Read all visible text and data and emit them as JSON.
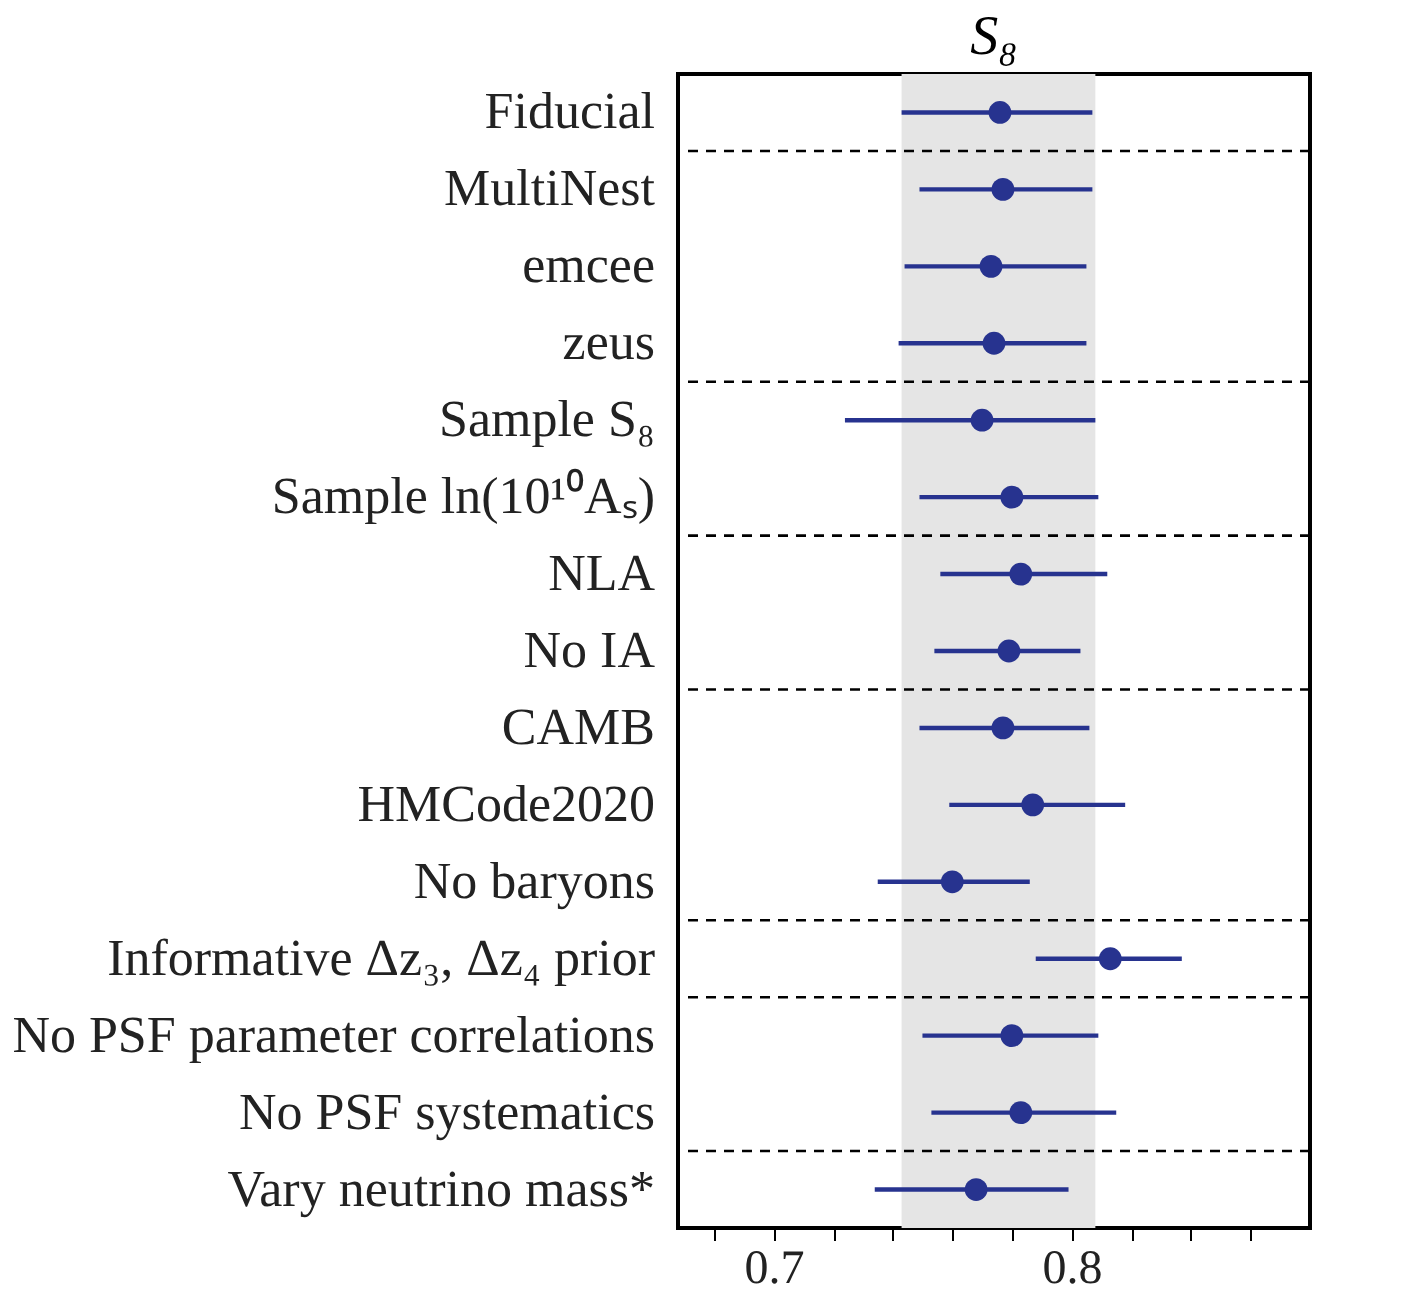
{
  "chart_data": {
    "type": "scatter",
    "orientation": "horizontal",
    "title": "S₈",
    "categories": [
      "Fiducial",
      "MultiNest",
      "emcee",
      "zeus",
      "Sample S₈",
      "Sample ln(10¹⁰Aₛ)",
      "NLA",
      "No IA",
      "CAMB",
      "HMCode2020",
      "No baryons",
      "Informative Δz₃, Δz₄ prior",
      "No PSF parameter correlations",
      "No PSF systematics",
      "Vary neutrino mass*"
    ],
    "series": [
      {
        "color": "#27338f",
        "values": [
          0.776,
          0.777,
          0.773,
          0.774,
          0.77,
          0.78,
          0.783,
          0.779,
          0.777,
          0.787,
          0.76,
          0.813,
          0.78,
          0.783,
          0.768
        ],
        "errors": [
          [
            0.743,
            0.807
          ],
          [
            0.749,
            0.807
          ],
          [
            0.744,
            0.805
          ],
          [
            0.742,
            0.805
          ],
          [
            0.724,
            0.808
          ],
          [
            0.749,
            0.809
          ],
          [
            0.756,
            0.812
          ],
          [
            0.754,
            0.803
          ],
          [
            0.749,
            0.806
          ],
          [
            0.759,
            0.818
          ],
          [
            0.735,
            0.786
          ],
          [
            0.788,
            0.837
          ],
          [
            0.75,
            0.809
          ],
          [
            0.753,
            0.815
          ],
          [
            0.734,
            0.799
          ]
        ]
      }
    ],
    "marker": "circle",
    "xlim": [
      0.668,
      0.88
    ],
    "xticks": [
      {
        "value": 0.68,
        "label": null
      },
      0.7,
      {
        "value": 0.72,
        "label": null
      },
      {
        "value": 0.74,
        "label": null
      },
      {
        "value": 0.76,
        "label": null
      },
      {
        "value": 0.78,
        "label": null
      },
      0.8,
      {
        "value": 0.82,
        "label": null
      },
      {
        "value": 0.84,
        "label": null
      },
      {
        "value": 0.86,
        "label": null
      }
    ],
    "bands": [
      {
        "axis": "x",
        "from": 0.743,
        "to": 0.808,
        "color": "#e5e5e5"
      }
    ],
    "ref_lines": [
      {
        "axis": "y",
        "value": "Fiducial",
        "line_style": "dashed",
        "color": "#000000"
      },
      {
        "axis": "y",
        "value": "zeus",
        "line_style": "dashed",
        "color": "#000000"
      },
      {
        "axis": "y",
        "value": "Sample ln(10¹⁰Aₛ)",
        "line_style": "dashed",
        "color": "#000000"
      },
      {
        "axis": "y",
        "value": "No IA",
        "line_style": "dashed",
        "color": "#000000"
      },
      {
        "axis": "y",
        "value": "No baryons",
        "line_style": "dashed",
        "color": "#000000"
      },
      {
        "axis": "y",
        "value": "Informative Δz₃, Δz₄ prior",
        "line_style": "dashed",
        "color": "#000000"
      },
      {
        "axis": "y",
        "value": "No PSF systematics",
        "line_style": "dashed",
        "color": "#000000"
      }
    ],
    "grid": false,
    "legend": false
  }
}
